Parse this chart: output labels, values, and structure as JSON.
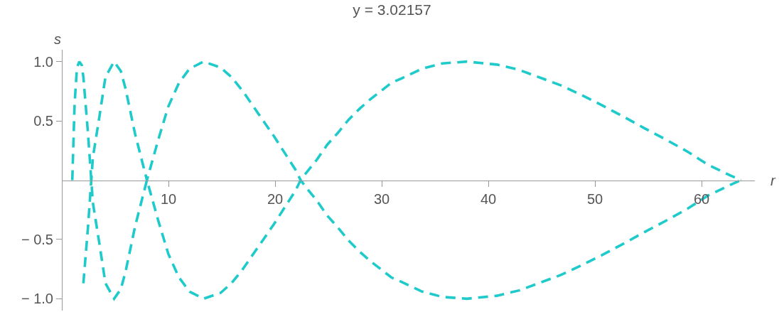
{
  "chart_data": {
    "type": "line",
    "title": "y = 3.02157",
    "xlabel": "r",
    "ylabel": "s",
    "xlim": [
      0,
      65
    ],
    "xticks": [
      10,
      20,
      30,
      40,
      50,
      60
    ],
    "ylim": [
      -1.1,
      1.1
    ],
    "yticks": [
      {
        "value": -1,
        "label": "− 1.0"
      },
      {
        "value": -0.5,
        "label": "− 0.5"
      },
      0.5,
      {
        "value": 1,
        "label": "1.0"
      }
    ],
    "line_style": "dashed",
    "marker": "none",
    "grid": false,
    "series": [
      {
        "color": "#1fcaca",
        "x": [
          0.98,
          1.2,
          1.42,
          1.64,
          1.87,
          2.02,
          2.45,
          2.91,
          3.53,
          4.09,
          4.9,
          5.53,
          5.98,
          6.87,
          7.98,
          9.04,
          9.98,
          10.98,
          11.98,
          13.3,
          14.9,
          15.9,
          16.9,
          17.9,
          18.9,
          19.9,
          20.9,
          21.9,
          22.4,
          22.9,
          23.9,
          24.9,
          25.9,
          26.9,
          27.9,
          28.9,
          29.9,
          30.9,
          31.9,
          33.8,
          35.7,
          38.0,
          40.8,
          42.9,
          44.7,
          46.8,
          48.7,
          50.7,
          52.8,
          54.6,
          56.7,
          58.7,
          60.6,
          62.7,
          63.7
        ],
        "values": [
          0,
          0.65,
          0.95,
          1.0,
          0.97,
          0.87,
          0.4,
          -0.19,
          -0.54,
          -0.87,
          -1.0,
          -0.92,
          -0.77,
          -0.39,
          0,
          -0.34,
          -0.62,
          -0.82,
          -0.94,
          -1.0,
          -0.95,
          -0.87,
          -0.76,
          -0.63,
          -0.5,
          -0.37,
          -0.23,
          -0.09,
          0,
          0.06,
          0.17,
          0.3,
          0.4,
          0.51,
          0.6,
          0.68,
          0.75,
          0.82,
          0.86,
          0.94,
          0.985,
          1.0,
          0.975,
          0.93,
          0.87,
          0.8,
          0.72,
          0.63,
          0.53,
          0.44,
          0.34,
          0.24,
          0.13,
          0.04,
          0
        ]
      },
      {
        "color": "#1fcaca",
        "x": [
          2.02,
          2.45,
          2.91,
          3.53,
          4.09,
          4.9,
          5.53,
          5.98,
          6.87,
          7.98,
          9.04,
          9.98,
          10.98,
          11.98,
          13.3,
          14.9,
          15.9,
          16.9,
          17.9,
          18.9,
          19.9,
          20.9,
          21.9,
          22.4,
          22.9,
          23.9,
          24.9,
          25.9,
          26.9,
          27.9,
          28.9,
          29.9,
          30.9,
          31.9,
          33.8,
          35.7,
          38.0,
          40.8,
          42.9,
          44.7,
          46.8,
          48.7,
          50.7,
          52.8,
          54.6,
          56.7,
          58.7,
          60.6,
          62.7,
          63.7
        ],
        "values": [
          -0.87,
          -0.4,
          0.19,
          0.54,
          0.87,
          1.0,
          0.92,
          0.77,
          0.39,
          0,
          0.34,
          0.62,
          0.82,
          0.94,
          1.0,
          0.95,
          0.87,
          0.76,
          0.63,
          0.5,
          0.37,
          0.23,
          0.09,
          0,
          -0.06,
          -0.17,
          -0.3,
          -0.4,
          -0.51,
          -0.6,
          -0.68,
          -0.75,
          -0.82,
          -0.86,
          -0.94,
          -0.985,
          -1.0,
          -0.975,
          -0.93,
          -0.87,
          -0.8,
          -0.72,
          -0.63,
          -0.53,
          -0.44,
          -0.34,
          -0.24,
          -0.13,
          -0.04,
          0
        ]
      }
    ]
  }
}
